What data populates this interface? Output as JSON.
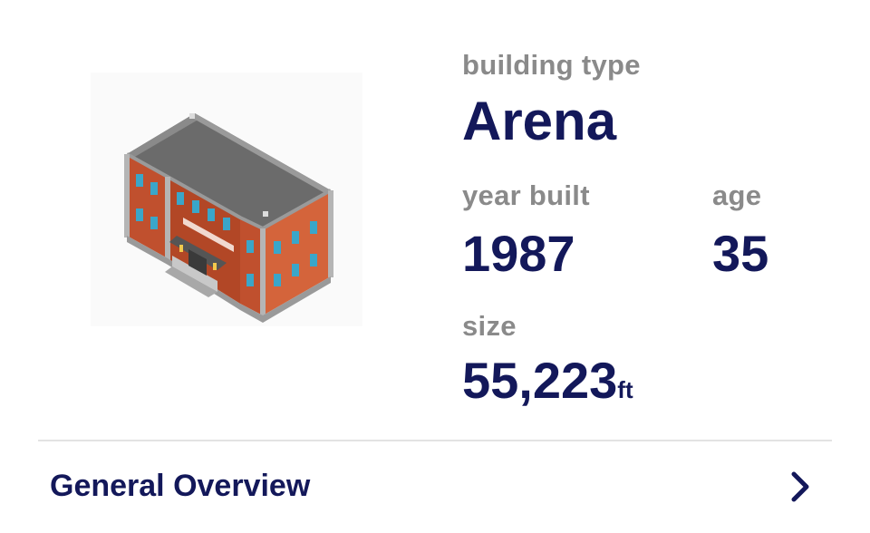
{
  "building": {
    "image_icon": "building-illustration-icon",
    "type_label": "building type",
    "type_value": "Arena",
    "year_label": "year built",
    "year_value": "1987",
    "age_label": "age",
    "age_value": "35",
    "size_label": "size",
    "size_value": "55,223",
    "size_unit": "ft"
  },
  "overview": {
    "label": "General Overview",
    "icon": "chevron-right-icon"
  },
  "colors": {
    "label_gray": "#8a8a8a",
    "value_navy": "#13185a",
    "divider": "#e3e3e3",
    "brick": "#c0502e",
    "window": "#3aa6c9",
    "roof": "#6b6b6b"
  }
}
